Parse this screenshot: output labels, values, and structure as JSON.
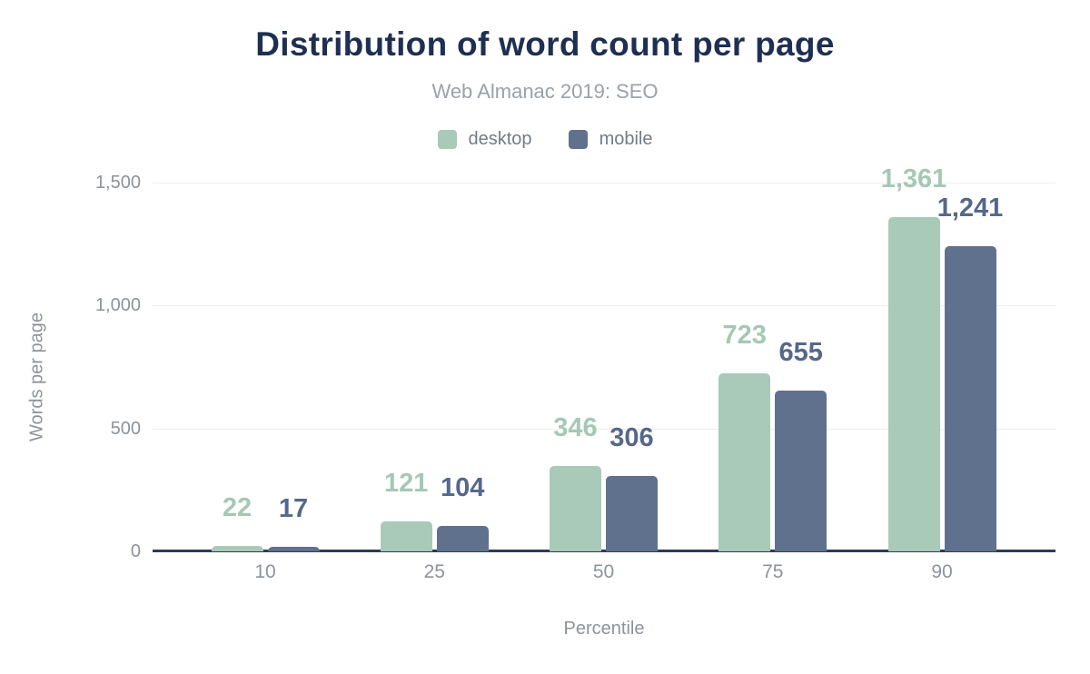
{
  "chart_data": {
    "type": "bar",
    "title": "Distribution of word count per page",
    "subtitle": "Web Almanac 2019: SEO",
    "xlabel": "Percentile",
    "ylabel": "Words per page",
    "categories": [
      "10",
      "25",
      "50",
      "75",
      "90"
    ],
    "series": [
      {
        "name": "desktop",
        "color": "#a9cab9",
        "label_color": "#a5c8b5",
        "values": [
          22,
          121,
          346,
          723,
          1361
        ],
        "value_labels": [
          "22",
          "121",
          "346",
          "723",
          "1,361"
        ]
      },
      {
        "name": "mobile",
        "color": "#5f718d",
        "label_color": "#55688b",
        "values": [
          17,
          104,
          306,
          655,
          1241
        ],
        "value_labels": [
          "17",
          "104",
          "306",
          "655",
          "1,241"
        ]
      }
    ],
    "y_axis": {
      "label": "Words per page",
      "range": [
        0,
        1500
      ],
      "ticks": [
        {
          "value": 0,
          "label": "0"
        },
        {
          "value": 500,
          "label": "500"
        },
        {
          "value": 1000,
          "label": "1,000"
        },
        {
          "value": 1500,
          "label": "1,500"
        }
      ]
    },
    "x_axis": {
      "label": "Percentile"
    },
    "grid": true,
    "legend_position": "top-center"
  },
  "style": {
    "title_color": "#1e2f51",
    "subtitle_color": "#9ba1a8",
    "axis_text_color": "#8d939b",
    "legend_text_color": "#747b85",
    "gridline_color": "#ebedee",
    "axis_line_color": "#2c3c58",
    "background_color": "#ffffff"
  }
}
